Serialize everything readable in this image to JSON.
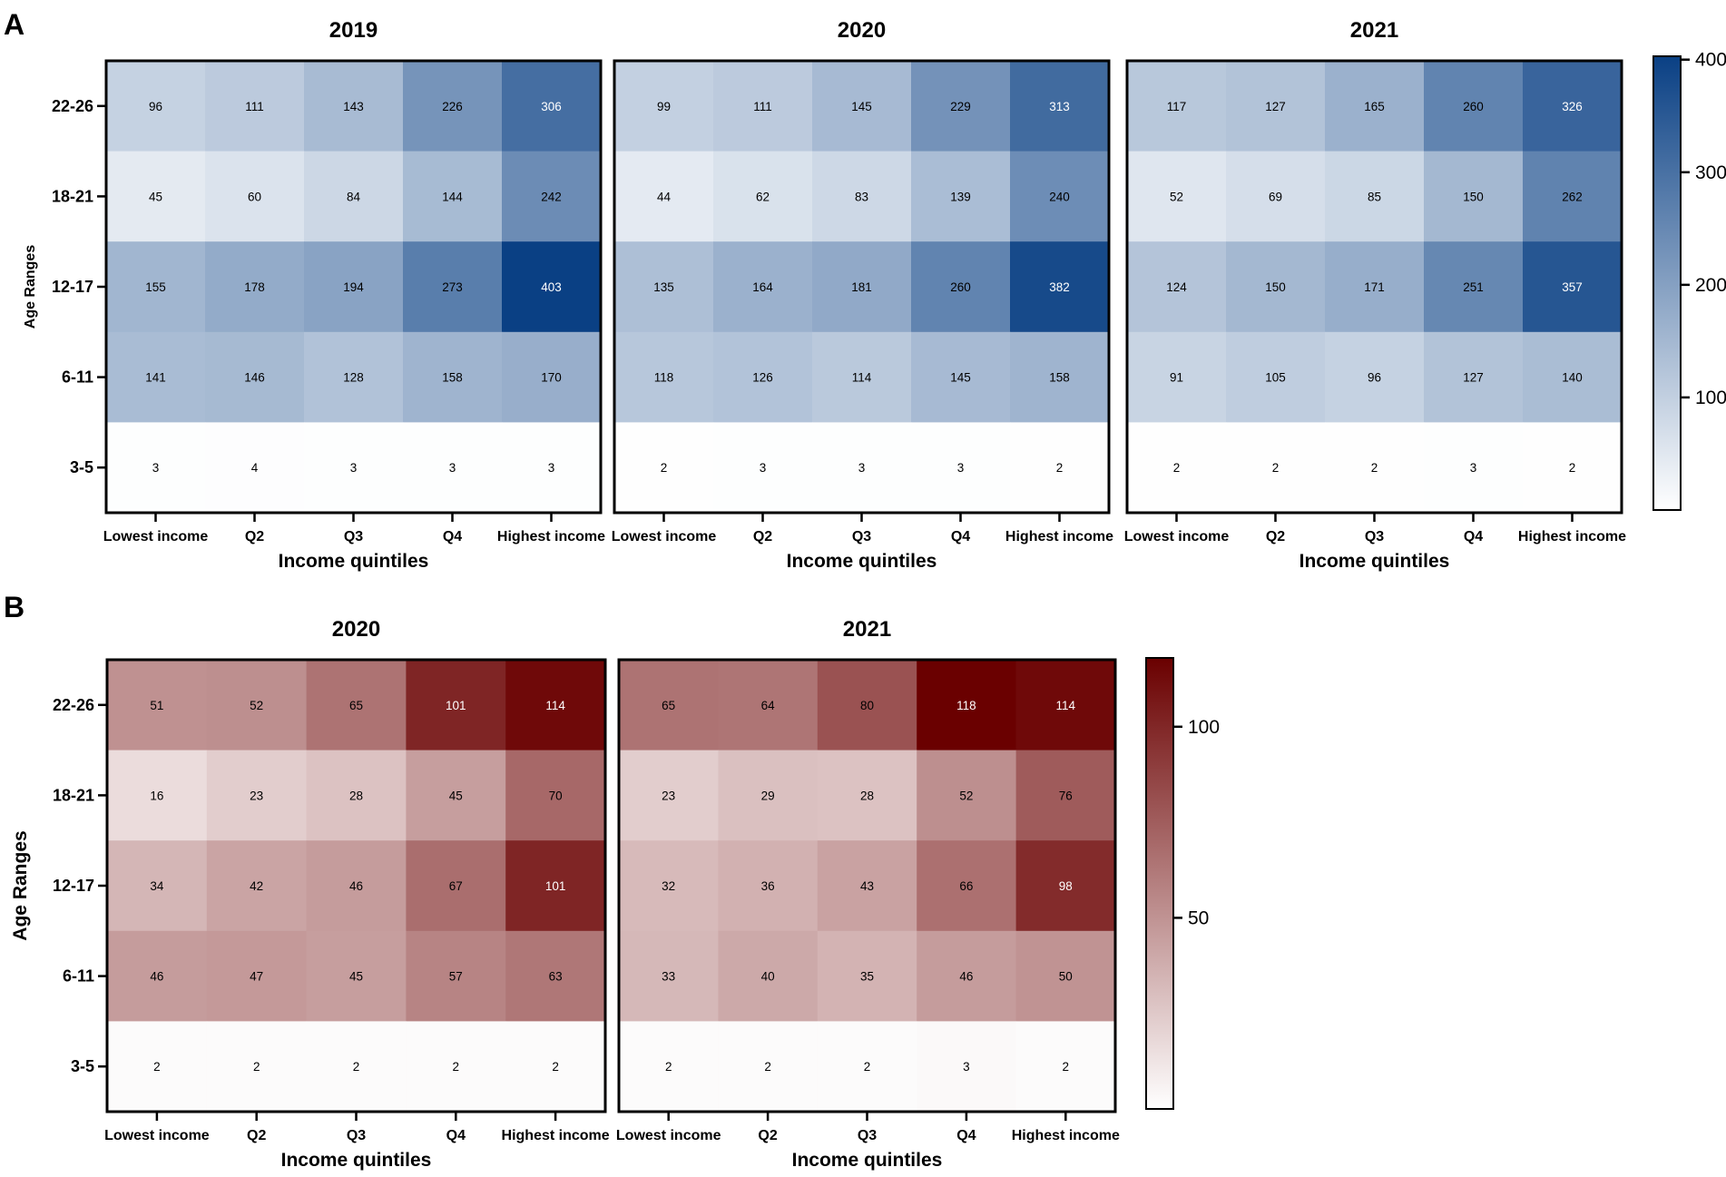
{
  "chart_data": [
    {
      "type": "heatmap",
      "panel": "A",
      "title": "2019",
      "xlabel": "Income quintiles",
      "ylabel": "Age Ranges",
      "categories": [
        "Lowest income",
        "Q2",
        "Q3",
        "Q4",
        "Highest income"
      ],
      "rows": [
        "22-26",
        "18-21",
        "12-17",
        "6-11",
        "3-5"
      ],
      "values": [
        [
          96,
          111,
          143,
          226,
          306
        ],
        [
          45,
          60,
          84,
          144,
          242
        ],
        [
          155,
          178,
          194,
          273,
          403
        ],
        [
          141,
          146,
          128,
          158,
          170
        ],
        [
          3,
          4,
          3,
          3,
          3
        ]
      ],
      "colorscale": "blue",
      "zlim": [
        0,
        403
      ]
    },
    {
      "type": "heatmap",
      "panel": "A",
      "title": "2020",
      "xlabel": "Income quintiles",
      "ylabel": "",
      "categories": [
        "Lowest income",
        "Q2",
        "Q3",
        "Q4",
        "Highest income"
      ],
      "rows": [
        "22-26",
        "18-21",
        "12-17",
        "6-11",
        "3-5"
      ],
      "values": [
        [
          99,
          111,
          145,
          229,
          313
        ],
        [
          44,
          62,
          83,
          139,
          240
        ],
        [
          135,
          164,
          181,
          260,
          382
        ],
        [
          118,
          126,
          114,
          145,
          158
        ],
        [
          2,
          3,
          3,
          3,
          2
        ]
      ],
      "colorscale": "blue",
      "zlim": [
        0,
        403
      ]
    },
    {
      "type": "heatmap",
      "panel": "A",
      "title": "2021",
      "xlabel": "Income quintiles",
      "ylabel": "",
      "categories": [
        "Lowest income",
        "Q2",
        "Q3",
        "Q4",
        "Highest income"
      ],
      "rows": [
        "22-26",
        "18-21",
        "12-17",
        "6-11",
        "3-5"
      ],
      "values": [
        [
          117,
          127,
          165,
          260,
          326
        ],
        [
          52,
          69,
          85,
          150,
          262
        ],
        [
          124,
          150,
          171,
          251,
          357
        ],
        [
          91,
          105,
          96,
          127,
          140
        ],
        [
          2,
          2,
          2,
          3,
          2
        ]
      ],
      "colorscale": "blue",
      "zlim": [
        0,
        403
      ]
    },
    {
      "type": "heatmap",
      "panel": "B",
      "title": "2020",
      "xlabel": "Income quintiles",
      "ylabel": "Age Ranges",
      "categories": [
        "Lowest income",
        "Q2",
        "Q3",
        "Q4",
        "Highest income"
      ],
      "rows": [
        "22-26",
        "18-21",
        "12-17",
        "6-11",
        "3-5"
      ],
      "values": [
        [
          51,
          52,
          65,
          101,
          114
        ],
        [
          16,
          23,
          28,
          45,
          70
        ],
        [
          34,
          42,
          46,
          67,
          101
        ],
        [
          46,
          47,
          45,
          57,
          63
        ],
        [
          2,
          2,
          2,
          2,
          2
        ]
      ],
      "colorscale": "red",
      "zlim": [
        0,
        118
      ]
    },
    {
      "type": "heatmap",
      "panel": "B",
      "title": "2021",
      "xlabel": "Income quintiles",
      "ylabel": "",
      "categories": [
        "Lowest income",
        "Q2",
        "Q3",
        "Q4",
        "Highest income"
      ],
      "rows": [
        "22-26",
        "18-21",
        "12-17",
        "6-11",
        "3-5"
      ],
      "values": [
        [
          65,
          64,
          80,
          118,
          114
        ],
        [
          23,
          29,
          28,
          52,
          76
        ],
        [
          32,
          36,
          43,
          66,
          98
        ],
        [
          33,
          40,
          35,
          46,
          50
        ],
        [
          2,
          2,
          2,
          3,
          2
        ]
      ],
      "colorscale": "red",
      "zlim": [
        0,
        118
      ]
    }
  ],
  "panels": {
    "A": {
      "label": "A"
    },
    "B": {
      "label": "B"
    }
  },
  "colorbars": [
    {
      "panel": "A",
      "scale": "blue",
      "range": [
        0,
        403
      ],
      "ticks": [
        100,
        200,
        300,
        400
      ]
    },
    {
      "panel": "B",
      "scale": "red",
      "range": [
        0,
        118
      ],
      "ticks": [
        50,
        100
      ]
    }
  ],
  "colors": {
    "blue_low": "#ffffff",
    "blue_high": "#0a4084",
    "red_low": "#ffffff",
    "red_high": "#6a0000",
    "frame": "#000000"
  }
}
